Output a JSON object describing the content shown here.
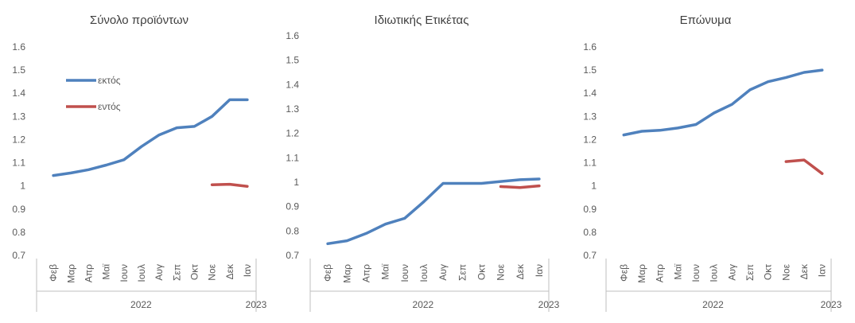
{
  "colors": {
    "outside": "#4f81bd",
    "inside": "#c0504d"
  },
  "chart_data": [
    {
      "type": "line",
      "title": "Σύνολο προϊόντων",
      "categories": [
        "Φεβ",
        "Μαρ",
        "Απρ",
        "Μαϊ",
        "Ιουν",
        "Ιουλ",
        "Αυγ",
        "Σεπ",
        "Οκτ",
        "Νοε",
        "Δεκ",
        "Ιαν"
      ],
      "years": [
        "2022",
        "2023"
      ],
      "ylim": [
        0.7,
        1.6
      ],
      "yticks": [
        "0.7",
        "0.8",
        "0.9",
        "1",
        "1.1",
        "1.2",
        "1.3",
        "1.4",
        "1.5",
        "1.6"
      ],
      "legend": {
        "position": "left-inside",
        "entries": [
          "εκτός",
          "εντός"
        ]
      },
      "series": [
        {
          "name": "εκτός",
          "values": [
            1.045,
            1.056,
            1.07,
            1.09,
            1.113,
            1.17,
            1.22,
            1.251,
            1.257,
            1.3,
            1.372,
            1.372
          ]
        },
        {
          "name": "εντός",
          "values": [
            null,
            null,
            null,
            null,
            null,
            null,
            null,
            null,
            null,
            1.005,
            1.007,
            0.998
          ]
        }
      ]
    },
    {
      "type": "line",
      "title": "Ιδιωτικής Ετικέτας",
      "categories": [
        "Φεβ",
        "Μαρ",
        "Απρ",
        "Μαϊ",
        "Ιουν",
        "Ιουλ",
        "Αυγ",
        "Σεπ",
        "Οκτ",
        "Νοε",
        "Δεκ",
        "Ιαν"
      ],
      "years": [
        "2022",
        "2023"
      ],
      "ylim": [
        0.7,
        1.6
      ],
      "yticks": [
        "0.7",
        "0.8",
        "0.9",
        "1",
        "1.1",
        "1.2",
        "1.3",
        "1.4",
        "1.5",
        "1.6"
      ],
      "series": [
        {
          "name": "εκτός",
          "values": [
            0.748,
            0.76,
            0.79,
            0.828,
            0.852,
            0.92,
            0.995,
            0.995,
            0.995,
            1.003,
            1.01,
            1.013
          ]
        },
        {
          "name": "εντός",
          "values": [
            null,
            null,
            null,
            null,
            null,
            null,
            null,
            null,
            null,
            0.982,
            0.978,
            0.985
          ]
        }
      ]
    },
    {
      "type": "line",
      "title": "Επώνυμα",
      "categories": [
        "Φεβ",
        "Μαρ",
        "Απρ",
        "Μαϊ",
        "Ιουν",
        "Ιουλ",
        "Αυγ",
        "Σεπ",
        "Οκτ",
        "Νοε",
        "Δεκ",
        "Ιαν"
      ],
      "years": [
        "2022",
        "2023"
      ],
      "ylim": [
        0.7,
        1.6
      ],
      "yticks": [
        "0.7",
        "0.8",
        "0.9",
        "1",
        "1.1",
        "1.2",
        "1.3",
        "1.4",
        "1.5",
        "1.6"
      ],
      "series": [
        {
          "name": "εκτός",
          "values": [
            1.22,
            1.236,
            1.24,
            1.25,
            1.265,
            1.315,
            1.352,
            1.415,
            1.45,
            1.468,
            1.49,
            1.5
          ]
        },
        {
          "name": "εντός",
          "values": [
            null,
            null,
            null,
            null,
            null,
            null,
            null,
            null,
            null,
            1.105,
            1.112,
            1.053
          ]
        }
      ]
    }
  ]
}
